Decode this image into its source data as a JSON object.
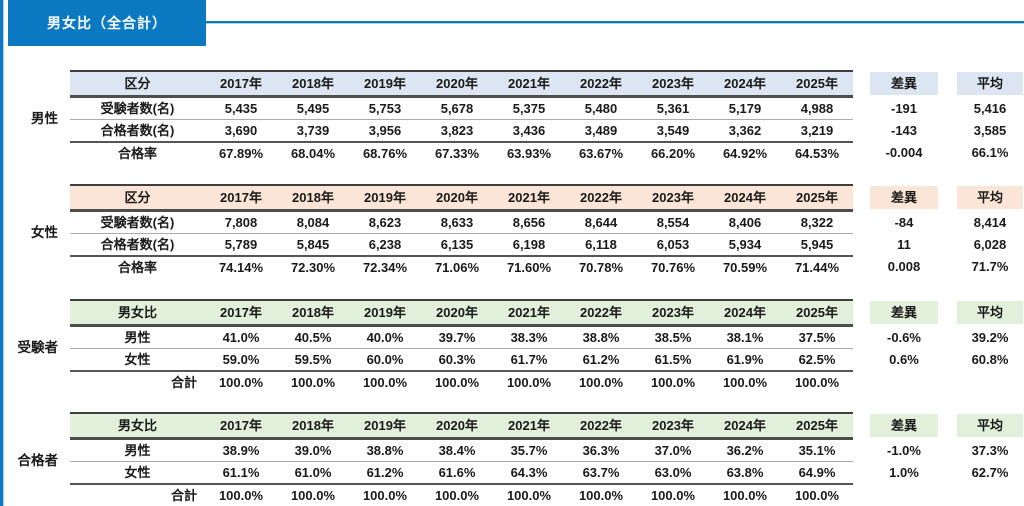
{
  "page_title": "男女比（全合計）",
  "colors": {
    "accent_blue": "#0B79C2",
    "header_blue": "#DBE6F2",
    "header_peach": "#FBE5D6",
    "header_green": "#E2EFDA"
  },
  "columns": {
    "years": [
      "2017年",
      "2018年",
      "2019年",
      "2020年",
      "2021年",
      "2022年",
      "2023年",
      "2024年",
      "2025年"
    ],
    "diff_header": "差異",
    "avg_header": "平均"
  },
  "tables": [
    {
      "id": "male",
      "group_label": "男性",
      "theme": "blue",
      "corner_label": "区分",
      "rows": [
        {
          "label": "受験者数(名)",
          "values": [
            "5,435",
            "5,495",
            "5,753",
            "5,678",
            "5,375",
            "5,480",
            "5,361",
            "5,179",
            "4,988"
          ],
          "diff": "-191",
          "avg": "5,416"
        },
        {
          "label": "合格者数(名)",
          "values": [
            "3,690",
            "3,739",
            "3,956",
            "3,823",
            "3,436",
            "3,489",
            "3,549",
            "3,362",
            "3,219"
          ],
          "diff": "-143",
          "avg": "3,585"
        },
        {
          "label": "合格率",
          "values": [
            "67.89%",
            "68.04%",
            "68.76%",
            "67.33%",
            "63.93%",
            "63.67%",
            "66.20%",
            "64.92%",
            "64.53%"
          ],
          "diff": "-0.004",
          "avg": "66.1%"
        }
      ]
    },
    {
      "id": "female",
      "group_label": "女性",
      "theme": "peach",
      "corner_label": "区分",
      "rows": [
        {
          "label": "受験者数(名)",
          "values": [
            "7,808",
            "8,084",
            "8,623",
            "8,633",
            "8,656",
            "8,644",
            "8,554",
            "8,406",
            "8,322"
          ],
          "diff": "-84",
          "avg": "8,414"
        },
        {
          "label": "合格者数(名)",
          "values": [
            "5,789",
            "5,845",
            "6,238",
            "6,135",
            "6,198",
            "6,118",
            "6,053",
            "5,934",
            "5,945"
          ],
          "diff": "11",
          "avg": "6,028"
        },
        {
          "label": "合格率",
          "values": [
            "74.14%",
            "72.30%",
            "72.34%",
            "71.06%",
            "71.60%",
            "70.78%",
            "70.76%",
            "70.59%",
            "71.44%"
          ],
          "diff": "0.008",
          "avg": "71.7%"
        }
      ]
    },
    {
      "id": "examinees",
      "group_label": "受験者",
      "theme": "green",
      "corner_label": "男女比",
      "rows": [
        {
          "label": "男性",
          "values": [
            "41.0%",
            "40.5%",
            "40.0%",
            "39.7%",
            "38.3%",
            "38.8%",
            "38.5%",
            "38.1%",
            "37.5%"
          ],
          "diff": "-0.6%",
          "avg": "39.2%"
        },
        {
          "label": "女性",
          "values": [
            "59.0%",
            "59.5%",
            "60.0%",
            "60.3%",
            "61.7%",
            "61.2%",
            "61.5%",
            "61.9%",
            "62.5%"
          ],
          "diff": "0.6%",
          "avg": "60.8%"
        },
        {
          "label": "合計",
          "label_align": "right",
          "values": [
            "100.0%",
            "100.0%",
            "100.0%",
            "100.0%",
            "100.0%",
            "100.0%",
            "100.0%",
            "100.0%",
            "100.0%"
          ],
          "diff": "",
          "avg": ""
        }
      ]
    },
    {
      "id": "passers",
      "group_label": "合格者",
      "theme": "green",
      "corner_label": "男女比",
      "rows": [
        {
          "label": "男性",
          "values": [
            "38.9%",
            "39.0%",
            "38.8%",
            "38.4%",
            "35.7%",
            "36.3%",
            "37.0%",
            "36.2%",
            "35.1%"
          ],
          "diff": "-1.0%",
          "avg": "37.3%"
        },
        {
          "label": "女性",
          "values": [
            "61.1%",
            "61.0%",
            "61.2%",
            "61.6%",
            "64.3%",
            "63.7%",
            "63.0%",
            "63.8%",
            "64.9%"
          ],
          "diff": "1.0%",
          "avg": "62.7%"
        },
        {
          "label": "合計",
          "label_align": "right",
          "values": [
            "100.0%",
            "100.0%",
            "100.0%",
            "100.0%",
            "100.0%",
            "100.0%",
            "100.0%",
            "100.0%",
            "100.0%"
          ],
          "diff": "",
          "avg": ""
        }
      ]
    }
  ]
}
